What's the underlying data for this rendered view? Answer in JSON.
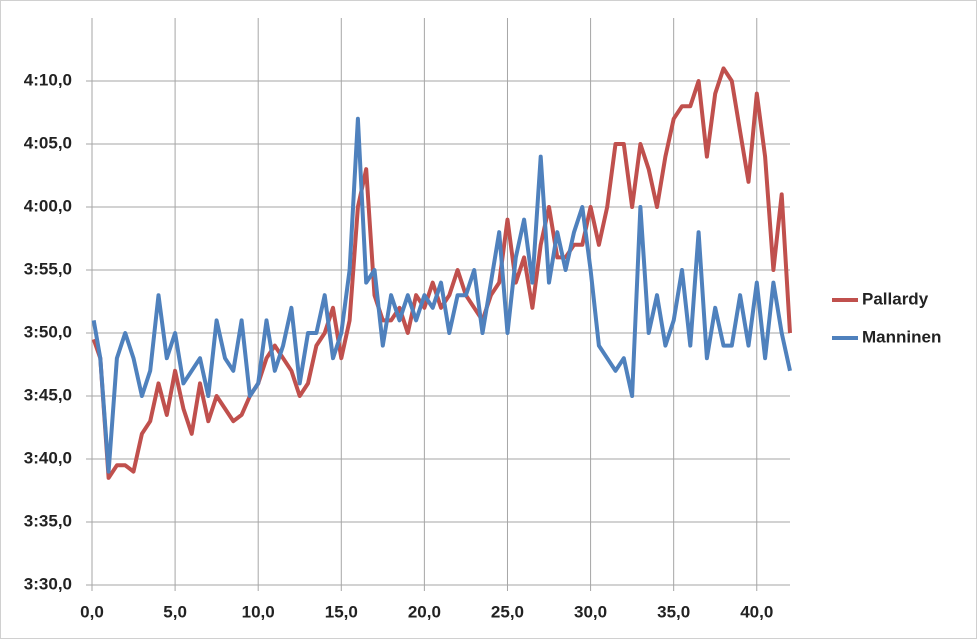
{
  "chart_data": {
    "type": "line",
    "x": [
      0.1,
      0.5,
      1,
      1.5,
      2,
      2.5,
      3,
      3.5,
      4,
      4.5,
      5,
      5.5,
      6,
      6.5,
      7,
      7.5,
      8,
      8.5,
      9,
      9.5,
      10,
      10.5,
      11,
      11.5,
      12,
      12.5,
      13,
      13.5,
      14,
      14.5,
      15,
      15.5,
      16,
      16.5,
      17,
      17.5,
      18,
      18.5,
      19,
      19.5,
      20,
      20.5,
      21,
      21.5,
      22,
      22.5,
      23,
      23.5,
      24,
      24.5,
      25,
      25.5,
      26,
      26.5,
      27,
      27.5,
      28,
      28.5,
      29,
      29.5,
      30,
      30.5,
      31,
      31.5,
      32,
      32.5,
      33,
      33.5,
      34,
      34.5,
      35,
      35.5,
      36,
      36.5,
      37,
      37.5,
      38,
      38.5,
      39,
      39.5,
      40,
      40.5,
      41,
      41.5,
      42
    ],
    "series": [
      {
        "name": "Pallardy",
        "color": "#c0504d",
        "values": [
          229.5,
          228,
          218.5,
          219.5,
          219.5,
          219,
          222,
          223,
          226,
          223.5,
          227,
          224,
          222,
          226,
          223,
          225,
          224,
          223,
          223.5,
          225,
          226,
          228,
          229,
          228,
          227,
          225,
          226,
          229,
          230,
          232,
          228,
          231,
          240,
          243,
          233,
          231,
          231,
          232,
          230,
          233,
          232,
          234,
          232,
          233,
          235,
          233,
          232,
          231,
          233,
          234,
          239,
          234,
          236,
          232,
          237,
          240,
          236,
          236,
          237,
          237,
          240,
          237,
          240,
          245,
          245,
          240,
          245,
          243,
          240,
          244,
          247,
          248,
          248,
          250,
          244,
          249,
          251,
          250,
          246,
          242,
          249,
          244,
          235,
          241,
          230
        ]
      },
      {
        "name": "Manninen",
        "color": "#4f81bd",
        "values": [
          231,
          228,
          219,
          228,
          230,
          228,
          225,
          227,
          233,
          228,
          230,
          226,
          227,
          228,
          225,
          231,
          228,
          227,
          231,
          225,
          226,
          231,
          227,
          229,
          232,
          226,
          230,
          230,
          233,
          228,
          230,
          235,
          247,
          234,
          235,
          229,
          233,
          231,
          233,
          231,
          233,
          232,
          234,
          230,
          233,
          233,
          235,
          230,
          234,
          238,
          230,
          236,
          239,
          234,
          244,
          234,
          238,
          235,
          238,
          240,
          235,
          229,
          228,
          227,
          228,
          225,
          240,
          230,
          233,
          229,
          231,
          235,
          229,
          238,
          228,
          232,
          229,
          229,
          233,
          229,
          234,
          228,
          234,
          230,
          227
        ]
      }
    ],
    "xlim": [
      0,
      42
    ],
    "xticks": [
      {
        "value": 0,
        "label": "0,0"
      },
      {
        "value": 5,
        "label": "5,0"
      },
      {
        "value": 10,
        "label": "10,0"
      },
      {
        "value": 15,
        "label": "15,0"
      },
      {
        "value": 20,
        "label": "20,0"
      },
      {
        "value": 25,
        "label": "25,0"
      },
      {
        "value": 30,
        "label": "30,0"
      },
      {
        "value": 35,
        "label": "35,0"
      },
      {
        "value": 40,
        "label": "40,0"
      }
    ],
    "ylim": [
      210,
      255
    ],
    "yticks": [
      {
        "value": 210,
        "label": "3:30,0"
      },
      {
        "value": 215,
        "label": "3:35,0"
      },
      {
        "value": 220,
        "label": "3:40,0"
      },
      {
        "value": 225,
        "label": "3:45,0"
      },
      {
        "value": 230,
        "label": "3:50,0"
      },
      {
        "value": 235,
        "label": "3:55,0"
      },
      {
        "value": 240,
        "label": "4:00,0"
      },
      {
        "value": 245,
        "label": "4:05,0"
      },
      {
        "value": 250,
        "label": "4:10,0"
      }
    ],
    "grid": true,
    "legend": "right"
  }
}
